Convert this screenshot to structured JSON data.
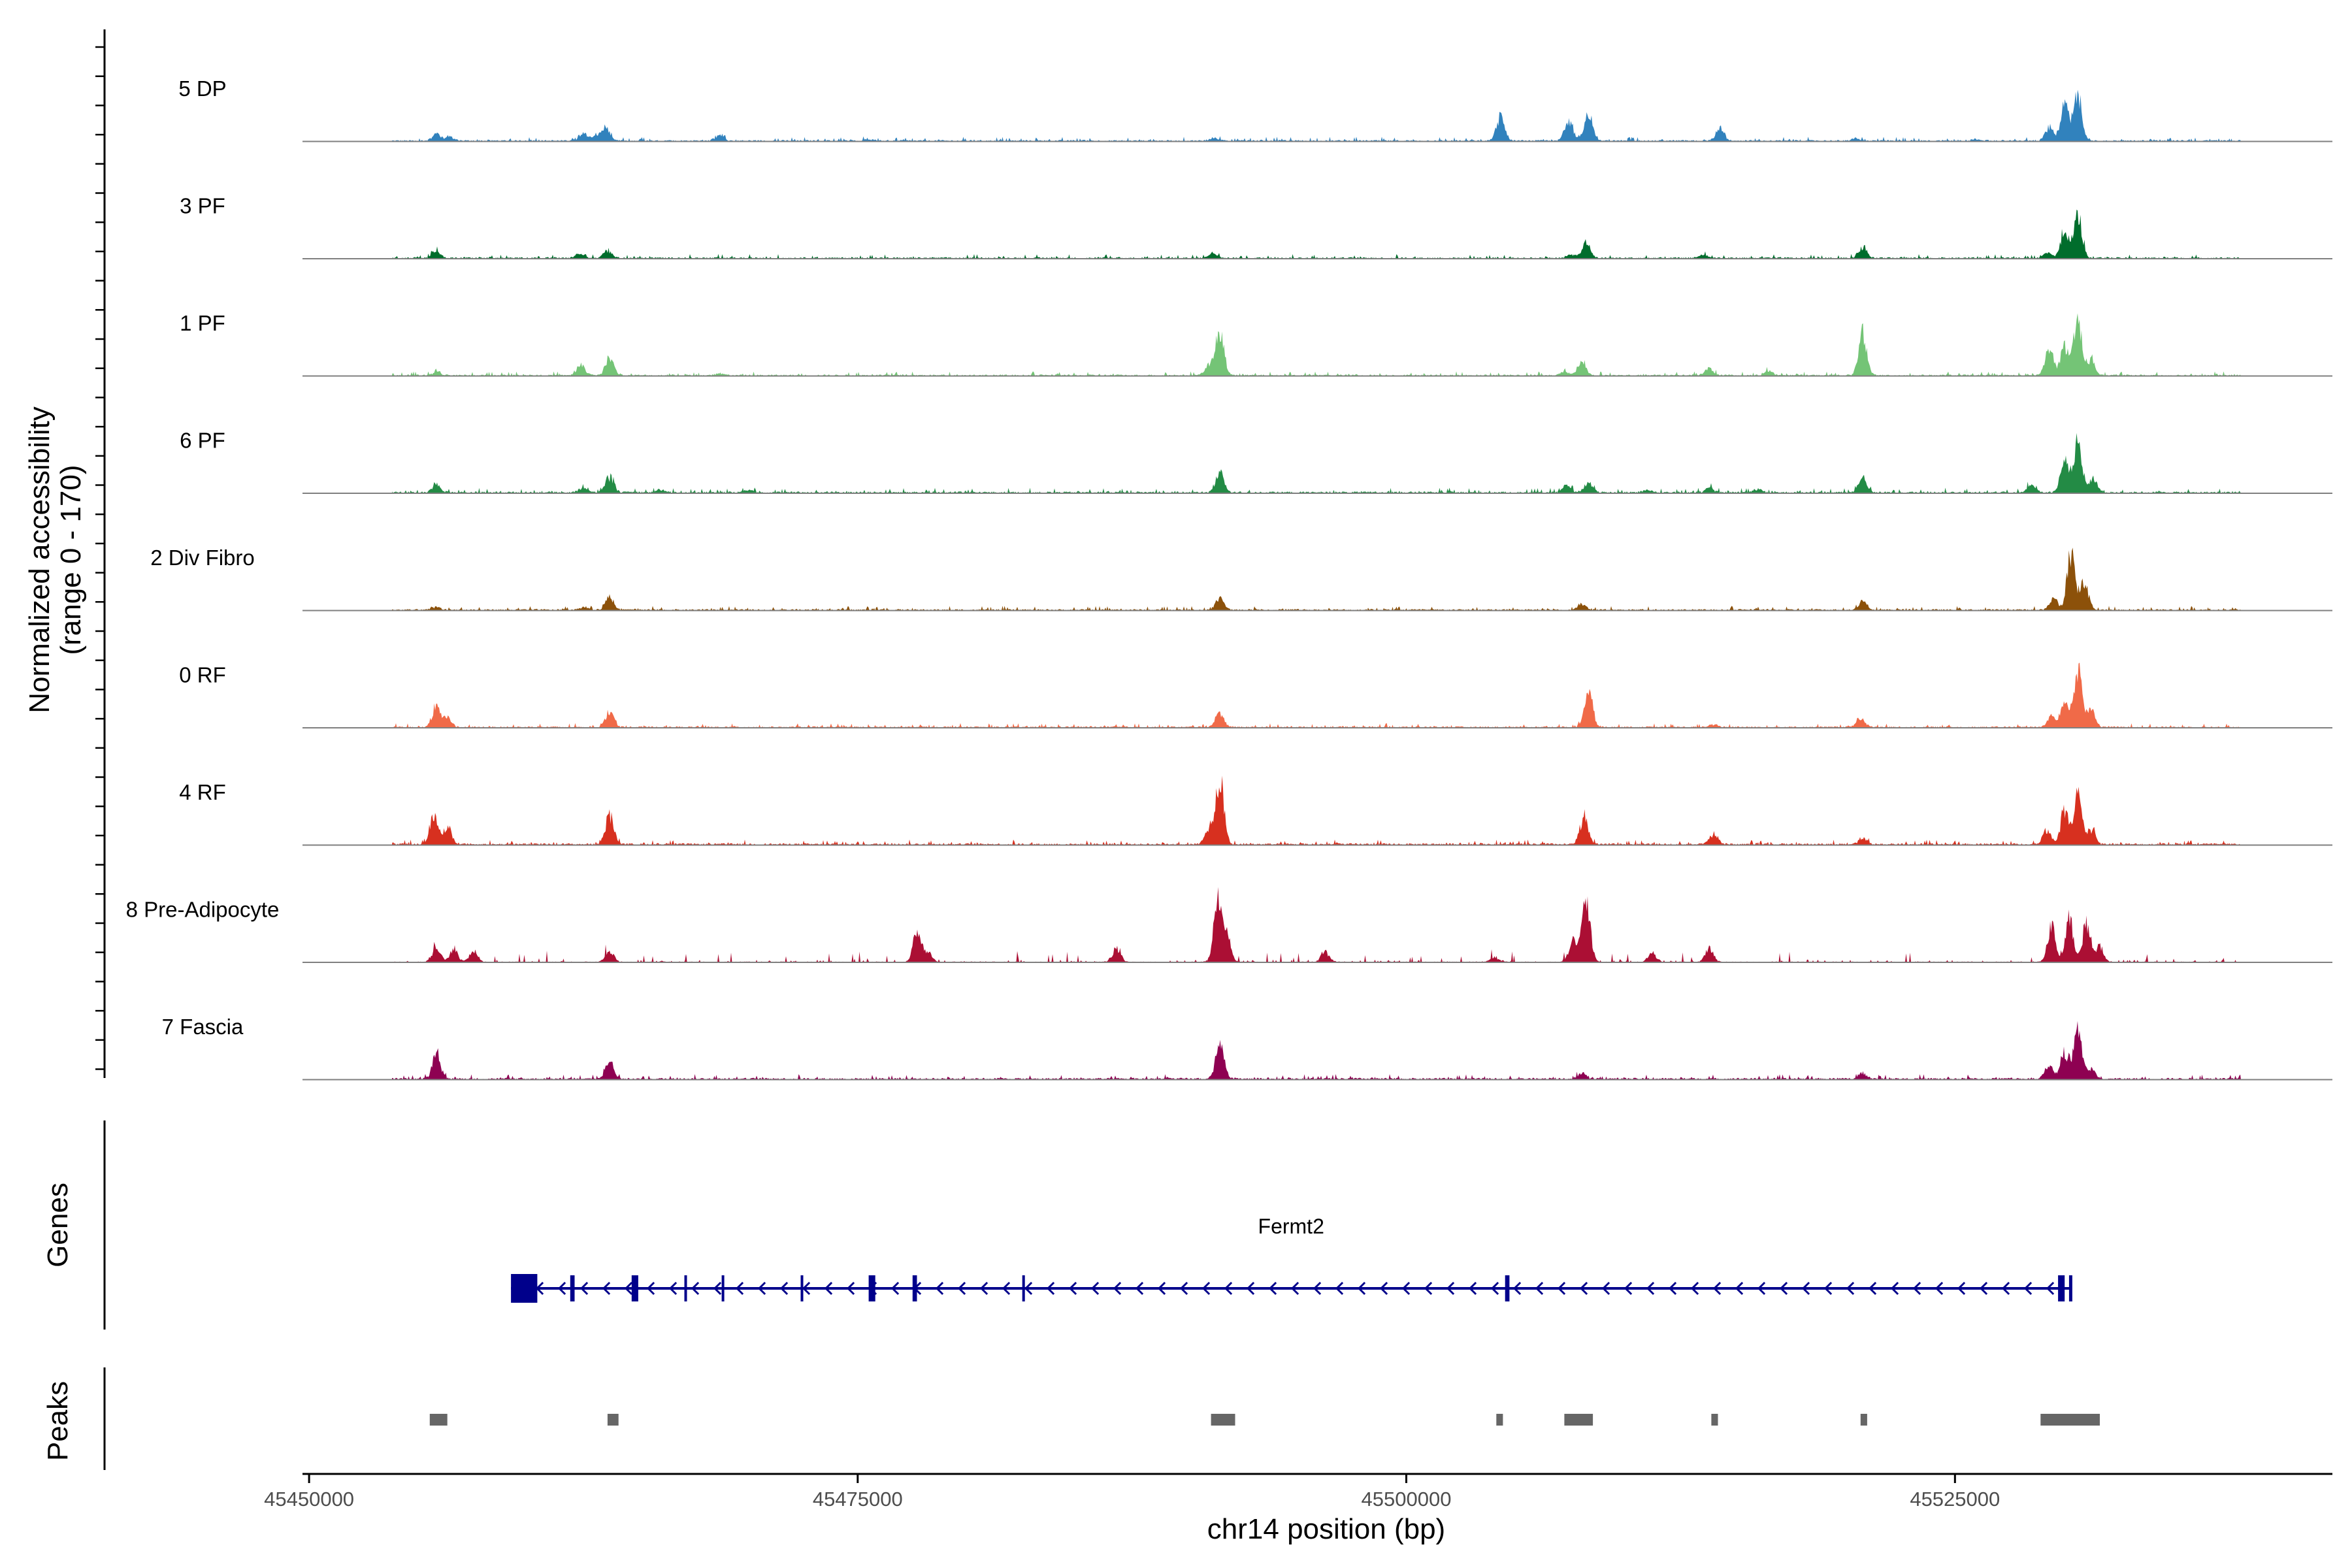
{
  "chart_data": {
    "type": "area",
    "title": "",
    "ylabel": "Normalized accessibility",
    "ylabel_range": "(range 0 - 170)",
    "xlabel": "chr14 position (bp)",
    "chrom": "chr14",
    "xlim": [
      45449700,
      45542200
    ],
    "ylim": [
      0,
      170
    ],
    "x_ticks": [
      45450000,
      45475000,
      45500000,
      45525000
    ],
    "x_tick_labels": [
      "45450000",
      "45475000",
      "45500000",
      "45525000"
    ],
    "panel_labels": {
      "genes": "Genes",
      "peaks": "Peaks"
    },
    "series": [
      {
        "name": "5 DP",
        "color": "#3182bd",
        "base": 2.5,
        "peaks": [
          [
            45455800,
            15
          ],
          [
            45456400,
            9
          ],
          [
            45462500,
            15
          ],
          [
            45463500,
            28
          ],
          [
            45463000,
            8
          ],
          [
            45468700,
            11
          ],
          [
            45475500,
            3
          ],
          [
            45491200,
            6
          ],
          [
            45504300,
            48
          ],
          [
            45507400,
            45
          ],
          [
            45508300,
            56
          ],
          [
            45514300,
            26
          ],
          [
            45520500,
            5
          ],
          [
            45526000,
            4
          ],
          [
            45530000,
            72
          ],
          [
            45530600,
            98
          ],
          [
            45529300,
            28
          ]
        ]
      },
      {
        "name": "3 PF",
        "color": "#006d2c",
        "base": 2.5,
        "peaks": [
          [
            45455800,
            15
          ],
          [
            45462300,
            9
          ],
          [
            45463600,
            16
          ],
          [
            45491200,
            10
          ],
          [
            45507500,
            8
          ],
          [
            45508200,
            32
          ],
          [
            45513500,
            6
          ],
          [
            45520800,
            24
          ],
          [
            45530000,
            60
          ],
          [
            45530600,
            95
          ],
          [
            45529200,
            12
          ]
        ]
      },
      {
        "name": "1 PF",
        "color": "#74c476",
        "base": 2.5,
        "peaks": [
          [
            45455800,
            7
          ],
          [
            45462400,
            22
          ],
          [
            45463700,
            38
          ],
          [
            45468700,
            4
          ],
          [
            45491500,
            90
          ],
          [
            45491000,
            20
          ],
          [
            45508000,
            30
          ],
          [
            45507200,
            8
          ],
          [
            45513800,
            15
          ],
          [
            45516500,
            10
          ],
          [
            45520800,
            85
          ],
          [
            45529300,
            52
          ],
          [
            45530000,
            62
          ],
          [
            45530600,
            118
          ],
          [
            45531200,
            30
          ]
        ]
      },
      {
        "name": "6 PF",
        "color": "#238b45",
        "base": 3,
        "peaks": [
          [
            45455800,
            18
          ],
          [
            45462500,
            12
          ],
          [
            45463700,
            33
          ],
          [
            45466000,
            6
          ],
          [
            45470000,
            5
          ],
          [
            45491500,
            42
          ],
          [
            45507300,
            15
          ],
          [
            45508300,
            22
          ],
          [
            45511000,
            6
          ],
          [
            45513800,
            10
          ],
          [
            45516000,
            6
          ],
          [
            45520800,
            30
          ],
          [
            45528500,
            18
          ],
          [
            45530000,
            70
          ],
          [
            45530600,
            108
          ],
          [
            45531300,
            28
          ]
        ]
      },
      {
        "name": "2 Div Fibro",
        "color": "#8c510a",
        "base": 2.5,
        "peaks": [
          [
            45455800,
            6
          ],
          [
            45462500,
            6
          ],
          [
            45463700,
            26
          ],
          [
            45491500,
            25
          ],
          [
            45508000,
            14
          ],
          [
            45520800,
            18
          ],
          [
            45529500,
            24
          ],
          [
            45530300,
            115
          ],
          [
            45530900,
            55
          ]
        ]
      },
      {
        "name": "0 RF",
        "color": "#f06a48",
        "base": 2.5,
        "peaks": [
          [
            45455800,
            43
          ],
          [
            45456300,
            18
          ],
          [
            45463700,
            31
          ],
          [
            45491500,
            28
          ],
          [
            45508300,
            80
          ],
          [
            45514000,
            6
          ],
          [
            45520700,
            18
          ],
          [
            45529400,
            22
          ],
          [
            45530000,
            52
          ],
          [
            45530600,
            115
          ],
          [
            45531200,
            35
          ]
        ]
      },
      {
        "name": "4 RF",
        "color": "#d7301f",
        "base": 3,
        "peaks": [
          [
            45455700,
            65
          ],
          [
            45456300,
            35
          ],
          [
            45463700,
            60
          ],
          [
            45491500,
            132
          ],
          [
            45491000,
            30
          ],
          [
            45508100,
            58
          ],
          [
            45514000,
            22
          ],
          [
            45520800,
            14
          ],
          [
            45529200,
            30
          ],
          [
            45530000,
            68
          ],
          [
            45530600,
            98
          ],
          [
            45531200,
            30
          ]
        ]
      },
      {
        "name": "8 Pre-Adipocyte",
        "color": "#ab0f34",
        "base": 1.5,
        "spiky": true,
        "peaks": [
          [
            45455800,
            28
          ],
          [
            45456600,
            26
          ],
          [
            45457500,
            22
          ],
          [
            45463700,
            22
          ],
          [
            45477700,
            58
          ],
          [
            45478200,
            20
          ],
          [
            45486800,
            28
          ],
          [
            45491400,
            118
          ],
          [
            45491800,
            55
          ],
          [
            45496300,
            20
          ],
          [
            45504000,
            10
          ],
          [
            45507600,
            42
          ],
          [
            45508200,
            128
          ],
          [
            45511200,
            18
          ],
          [
            45513800,
            28
          ],
          [
            45529400,
            70
          ],
          [
            45530200,
            88
          ],
          [
            45531000,
            82
          ],
          [
            45531600,
            30
          ]
        ]
      },
      {
        "name": "7 Fascia",
        "color": "#8e0152",
        "base": 3,
        "peaks": [
          [
            45455800,
            50
          ],
          [
            45463700,
            35
          ],
          [
            45491500,
            75
          ],
          [
            45508000,
            12
          ],
          [
            45520800,
            12
          ],
          [
            45529300,
            30
          ],
          [
            45530000,
            55
          ],
          [
            45530600,
            100
          ],
          [
            45531200,
            22
          ]
        ]
      }
    ],
    "gene": {
      "name": "Fermt2",
      "strand": "-",
      "start": 45459200,
      "end": 45530300,
      "exons": [
        [
          45459200,
          45460400
        ],
        [
          45461900,
          45462100
        ],
        [
          45464700,
          45465000
        ],
        [
          45467100,
          45467200
        ],
        [
          45468800,
          45468900
        ],
        [
          45472400,
          45472500
        ],
        [
          45475500,
          45475800
        ],
        [
          45477500,
          45477700
        ],
        [
          45482500,
          45482600
        ],
        [
          45504500,
          45504700
        ],
        [
          45529700,
          45530000
        ],
        [
          45530200,
          45530350
        ]
      ]
    },
    "peak_regions": [
      [
        45455500,
        45456300
      ],
      [
        45463600,
        45464100
      ],
      [
        45491100,
        45492200
      ],
      [
        45504100,
        45504400
      ],
      [
        45507200,
        45508500
      ],
      [
        45513900,
        45514200
      ],
      [
        45520700,
        45521000
      ],
      [
        45528900,
        45531600
      ]
    ],
    "colors": {
      "gene": "#00008b",
      "peak": "#666666",
      "baseline": "#7f7f7f",
      "axis": "#000000"
    }
  }
}
